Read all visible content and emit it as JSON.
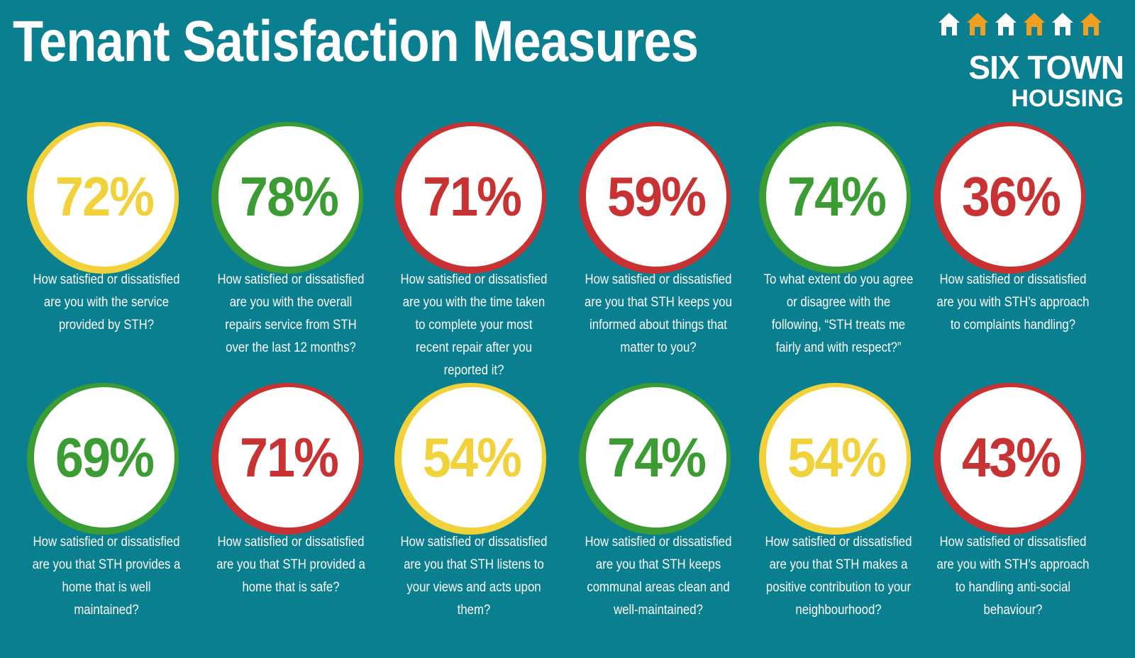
{
  "title": "Tenant Satisfaction Measures",
  "logo": {
    "line1": "SIX TOWN",
    "line2": "HOUSING",
    "house_colors": [
      "#ffffff",
      "#f0a020",
      "#ffffff",
      "#f0a020",
      "#ffffff",
      "#f0a020"
    ]
  },
  "colors": {
    "background": "#0a7f8f",
    "yellow": "#f2d23a",
    "green": "#3a9c32",
    "red": "#c83232"
  },
  "measures": [
    {
      "value": "72%",
      "status": "yellow",
      "question": "How satisfied or dissatisfied are you with the service provided by STH?"
    },
    {
      "value": "78%",
      "status": "green",
      "question": "How satisfied or dissatisfied are you with the overall repairs service from STH over the last 12 months?"
    },
    {
      "value": "71%",
      "status": "red",
      "question": "How satisfied or dissatisfied are you with the time taken to complete your most recent repair after you reported it?"
    },
    {
      "value": "59%",
      "status": "red",
      "question": "How satisfied or dissatisfied are you that STH keeps you informed about things that matter to you?"
    },
    {
      "value": "74%",
      "status": "green",
      "question": "To what extent do you agree or disagree with the following, “STH treats me fairly and with respect?”"
    },
    {
      "value": "36%",
      "status": "red",
      "question": "How satisfied or dissatisfied are you with STH’s approach to complaints handling?"
    },
    {
      "value": "69%",
      "status": "green",
      "question": "How satisfied or dissatisfied are you that STH provides a home that is well maintained?"
    },
    {
      "value": "71%",
      "status": "red",
      "question": "How satisfied or dissatisfied are you that STH provided a home that is safe?"
    },
    {
      "value": "54%",
      "status": "yellow",
      "question": "How satisfied or dissatisfied are you that STH listens to your views and acts upon them?"
    },
    {
      "value": "74%",
      "status": "green",
      "question": "How satisfied or dissatisfied are you that STH keeps communal areas clean and well-maintained?"
    },
    {
      "value": "54%",
      "status": "yellow",
      "question": "How satisfied or dissatisfied are you that STH makes a positive contribution to your neighbourhood?"
    },
    {
      "value": "43%",
      "status": "red",
      "question": "How satisfied or dissatisfied are you with STH’s approach to handling anti-social behaviour?"
    }
  ]
}
